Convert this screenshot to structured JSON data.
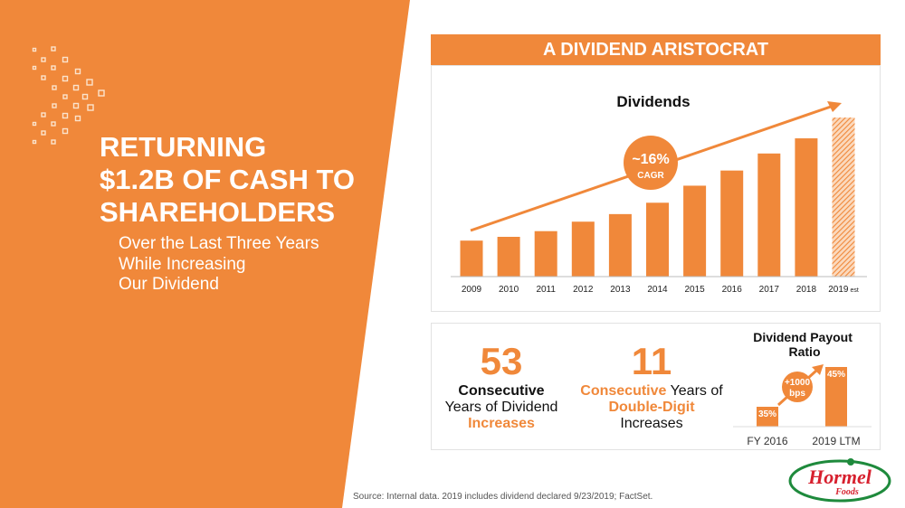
{
  "slide": {
    "title": "RETURNING\n$1.2B OF CASH TO\nSHAREHOLDERS",
    "subtitle": "Over the Last Three Years\nWhile Increasing\nOur Dividend",
    "header": "A DIVIDEND ARISTOCRAT",
    "source": "Source: Internal data. 2019 includes dividend declared 9/23/2019; FactSet.",
    "logo_text": "Hormel Foods",
    "colors": {
      "orange": "#F0883A",
      "logo_red": "#D7202E",
      "logo_green": "#1E8A3C"
    }
  },
  "stats": {
    "years_increase": {
      "number": "53",
      "line1": "Consecutive",
      "line2": "Years of Dividend",
      "line3": "Increases"
    },
    "double_digit": {
      "number": "11",
      "line1a": "Consecutive",
      "line1b": " Years of",
      "line2": "Double-Digit",
      "line3": "Increases"
    }
  },
  "chart_data": [
    {
      "type": "bar",
      "title": "Dividends",
      "categories": [
        "2009",
        "2010",
        "2011",
        "2012",
        "2013",
        "2014",
        "2015",
        "2016",
        "2017",
        "2018",
        "2019"
      ],
      "category_suffix_last": "est",
      "values": [
        0.19,
        0.21,
        0.24,
        0.29,
        0.33,
        0.39,
        0.48,
        0.56,
        0.65,
        0.73,
        0.84
      ],
      "estimated": [
        false,
        false,
        false,
        false,
        false,
        false,
        false,
        false,
        false,
        false,
        true
      ],
      "annotation": {
        "value": "~16%",
        "label": "CAGR"
      },
      "grid": false,
      "ylim": [
        0,
        0.9
      ]
    },
    {
      "type": "bar",
      "title": "Dividend Payout Ratio",
      "categories": [
        "FY 2016",
        "2019 LTM"
      ],
      "values": [
        35,
        45
      ],
      "labels": [
        "35%",
        "45%"
      ],
      "annotation": {
        "value": "+1000",
        "label": "bps"
      },
      "ylim": [
        30,
        46
      ]
    }
  ]
}
